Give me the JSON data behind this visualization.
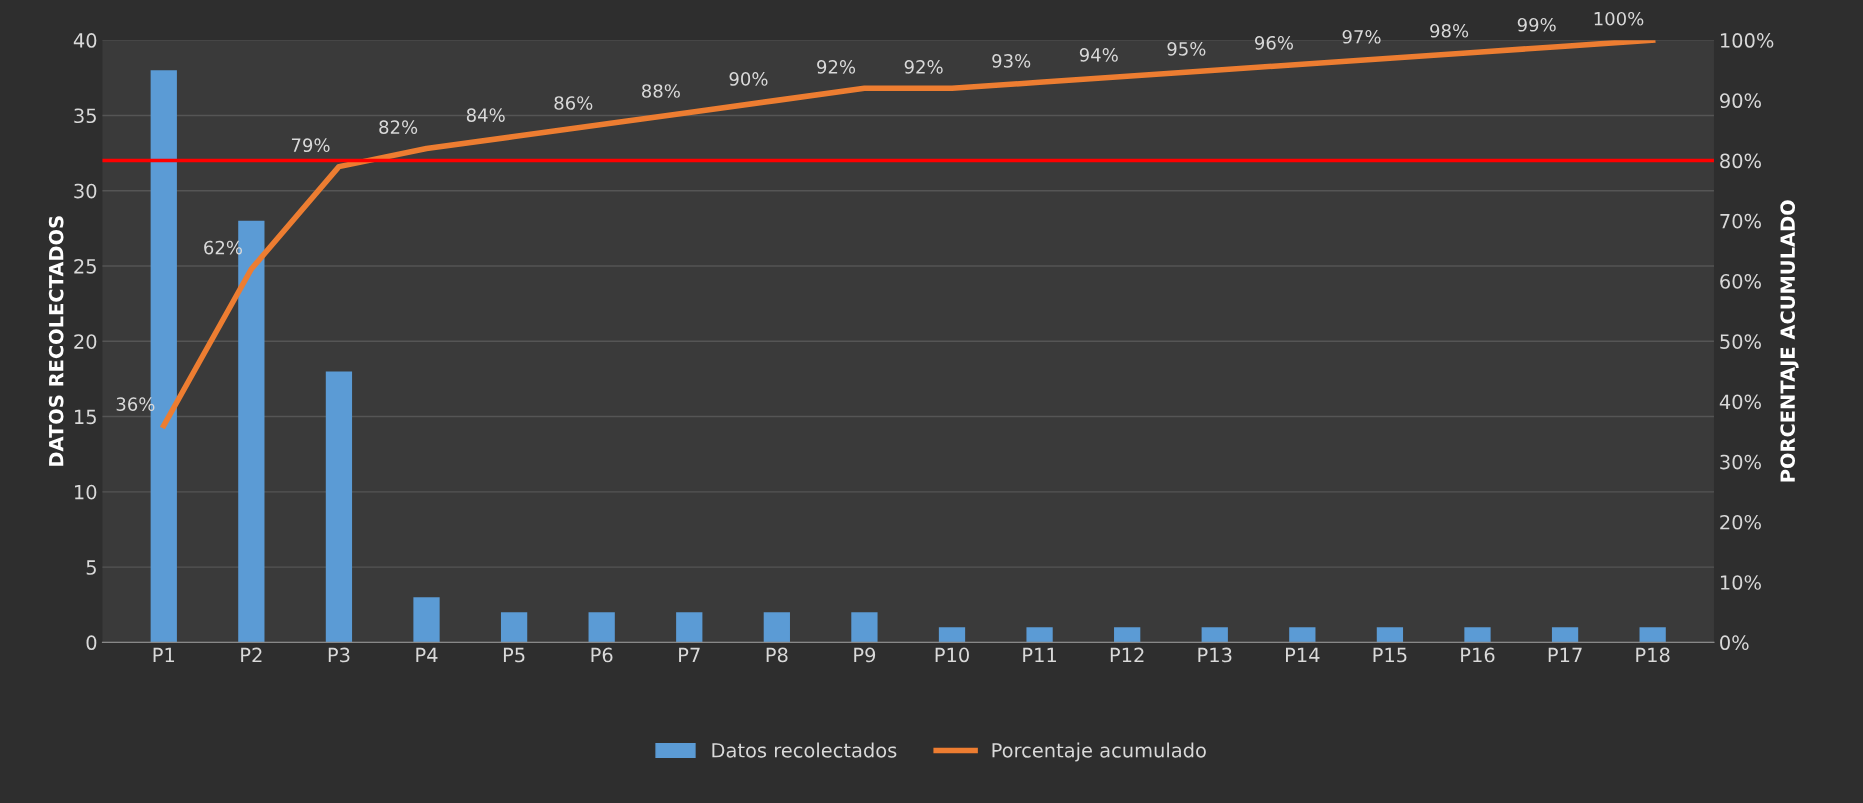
{
  "chart_data": {
    "type": "bar",
    "categories": [
      "P1",
      "P2",
      "P3",
      "P4",
      "P5",
      "P6",
      "P7",
      "P8",
      "P9",
      "P10",
      "P11",
      "P12",
      "P13",
      "P14",
      "P15",
      "P16",
      "P17",
      "P18"
    ],
    "series": [
      {
        "name": "Datos recolectados",
        "color": "#5b9bd5",
        "values": [
          38,
          28,
          18,
          3,
          2,
          2,
          2,
          2,
          2,
          1,
          1,
          1,
          1,
          1,
          1,
          1,
          1,
          1
        ]
      },
      {
        "name": "Porcentaje acumulado",
        "type": "line",
        "axis": "y2",
        "color": "#ed7d31",
        "data_labels": true,
        "value_labels": [
          "36%",
          "62%",
          "79%",
          "82%",
          "84%",
          "86%",
          "88%",
          "90%",
          "92%",
          "92%",
          "93%",
          "94%",
          "95%",
          "96%",
          "97%",
          "98%",
          "99%",
          "100%"
        ],
        "values": [
          36,
          62,
          79,
          82,
          84,
          86,
          88,
          90,
          92,
          92,
          93,
          94,
          95,
          96,
          97,
          98,
          99,
          100
        ]
      }
    ],
    "ylabel": "DATOS RECOLECTADOS",
    "y2label": "PORCENTAJE ACUMULADO",
    "ylim": [
      0,
      40
    ],
    "yticks": [
      0,
      5,
      10,
      15,
      20,
      25,
      30,
      35,
      40
    ],
    "y2lim": [
      0,
      100
    ],
    "y2ticks": [
      {
        "value": 0,
        "label": "0%"
      },
      {
        "value": 10,
        "label": "10%"
      },
      {
        "value": 20,
        "label": "20%"
      },
      {
        "value": 30,
        "label": "30%"
      },
      {
        "value": 40,
        "label": "40%"
      },
      {
        "value": 50,
        "label": "50%"
      },
      {
        "value": 60,
        "label": "60%"
      },
      {
        "value": 70,
        "label": "70%"
      },
      {
        "value": 80,
        "label": "80%"
      },
      {
        "value": 90,
        "label": "90%"
      },
      {
        "value": 100,
        "label": "100%"
      }
    ],
    "ref_lines": [
      {
        "axis": "y2",
        "value": 80,
        "color": "#ff0000"
      }
    ],
    "grid": "y",
    "legend": "bottom"
  }
}
